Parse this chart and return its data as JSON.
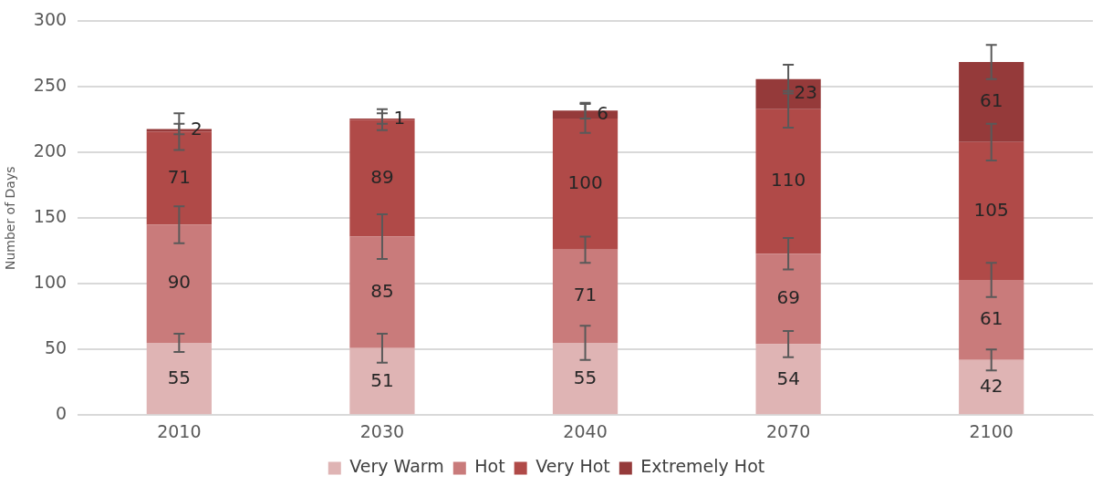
{
  "chart_data": {
    "type": "bar",
    "stacked": true,
    "ylabel": "Number of Days",
    "categories": [
      "2010",
      "2030",
      "2040",
      "2070",
      "2100"
    ],
    "series": [
      {
        "name": "Very Warm",
        "color": "#dfb4b4",
        "values": [
          55,
          51,
          55,
          54,
          42
        ],
        "errors": [
          7,
          11,
          13,
          10,
          8
        ]
      },
      {
        "name": "Hot",
        "color": "#c97b7b",
        "values": [
          90,
          85,
          71,
          69,
          61
        ],
        "errors": [
          14,
          17,
          10,
          12,
          13
        ]
      },
      {
        "name": "Very Hot",
        "color": "#b04a48",
        "values": [
          71,
          89,
          100,
          110,
          105
        ],
        "errors": [
          14,
          8,
          11,
          14,
          14
        ]
      },
      {
        "name": "Extremely Hot",
        "color": "#953a3a",
        "values": [
          2,
          1,
          6,
          23,
          61
        ],
        "errors": [
          4,
          4,
          6,
          11,
          13
        ]
      }
    ],
    "ylim": [
      0,
      300
    ],
    "yticks": [
      0,
      50,
      100,
      150,
      200,
      250,
      300
    ],
    "grid": "y",
    "legend": "bottom",
    "data_labels": true
  }
}
